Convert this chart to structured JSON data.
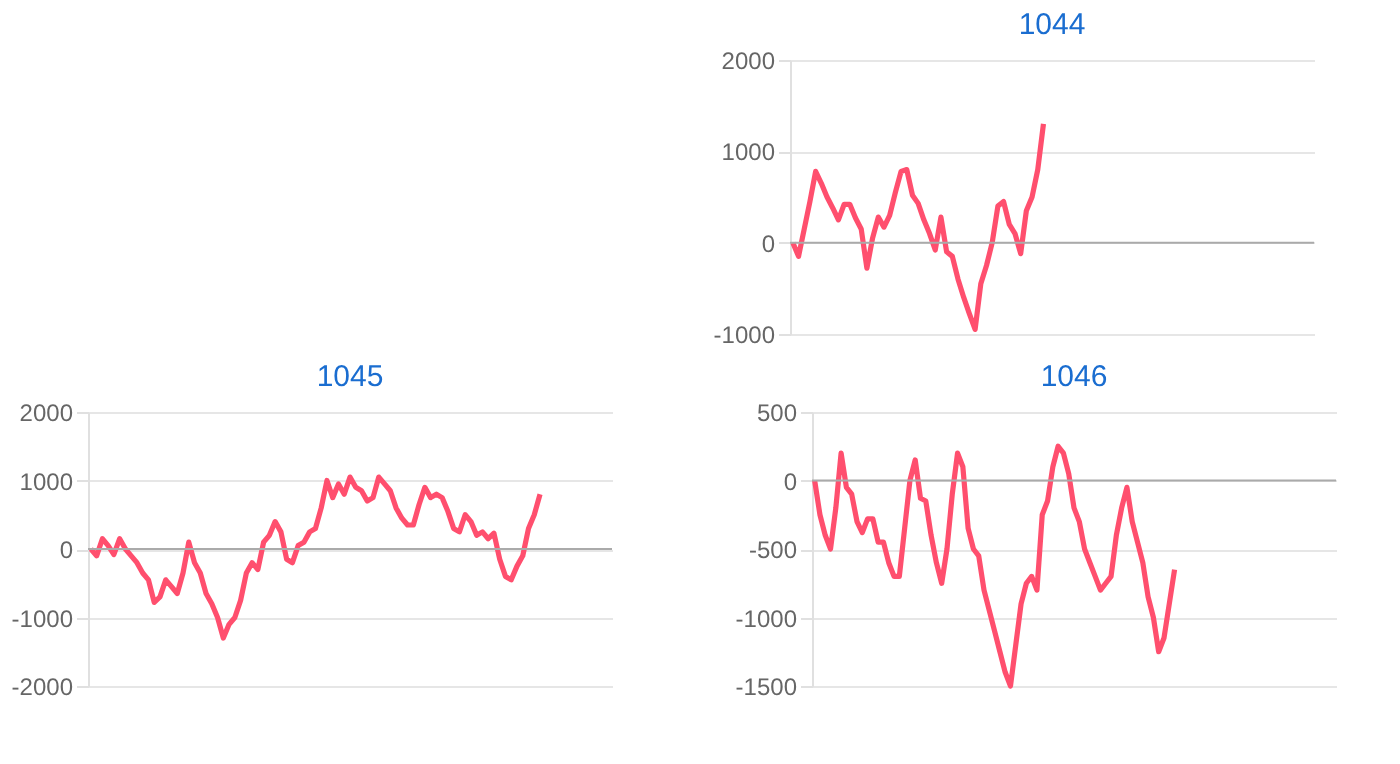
{
  "chart_data": [
    {
      "type": "line",
      "title": "1044",
      "tick_labels": "y",
      "grid": "y",
      "legend": false,
      "marker": "none",
      "line_style": "solid",
      "ylim": [
        -1000,
        2000
      ],
      "yticks": [
        -1000,
        0,
        1000,
        2000
      ],
      "ref_lines": [
        {
          "axis": "y",
          "value": 0,
          "color": "#aaaaaa"
        }
      ],
      "categories": [
        null,
        null,
        null,
        null,
        null,
        null,
        null,
        null,
        null,
        null,
        null,
        null,
        null,
        null,
        null,
        null,
        null,
        null,
        null,
        null,
        null,
        null,
        null,
        null,
        null,
        null,
        null,
        null,
        null,
        null,
        null,
        null,
        null,
        null,
        null,
        null,
        null,
        null,
        null,
        null,
        null,
        null,
        null,
        null,
        null,
        null,
        null,
        null,
        null,
        null,
        null,
        null,
        null,
        null,
        null,
        null,
        null,
        null,
        null,
        null,
        null,
        null,
        null,
        null,
        null,
        null,
        null,
        null,
        null,
        null,
        null,
        null,
        null,
        null,
        null,
        null,
        null,
        null,
        null,
        null,
        null,
        null,
        null,
        null,
        null,
        null,
        null,
        null,
        null,
        null,
        null,
        null
      ],
      "series": [
        {
          "color": "#ff4f6e",
          "values": [
            0,
            -150,
            150,
            450,
            780,
            650,
            500,
            380,
            250,
            420,
            420,
            270,
            150,
            -280,
            50,
            280,
            170,
            300,
            550,
            780,
            800,
            520,
            430,
            250,
            100,
            -80,
            280,
            -100,
            -150,
            -400,
            -600,
            -780,
            -950,
            -450,
            -250,
            0,
            400,
            450,
            200,
            100,
            -120,
            350,
            500,
            800,
            1300,
            null,
            null,
            null,
            null,
            null,
            null,
            null,
            null,
            null,
            null,
            null,
            null,
            null,
            null,
            null,
            null,
            null,
            null,
            null,
            null,
            null,
            null,
            null,
            null,
            null,
            null,
            null,
            null,
            null,
            null,
            null,
            null,
            null,
            null,
            null,
            null,
            null,
            null,
            null,
            null,
            null,
            null,
            null,
            null,
            null,
            null,
            null
          ]
        }
      ]
    },
    {
      "type": "line",
      "title": "1045",
      "tick_labels": "y",
      "grid": "y",
      "legend": false,
      "marker": "none",
      "line_style": "solid",
      "ylim": [
        -2000,
        2000
      ],
      "yticks": [
        -2000,
        -1000,
        0,
        1000,
        2000
      ],
      "ref_lines": [
        {
          "axis": "y",
          "value": 0,
          "color": "#aaaaaa"
        }
      ],
      "categories": [
        null,
        null,
        null,
        null,
        null,
        null,
        null,
        null,
        null,
        null,
        null,
        null,
        null,
        null,
        null,
        null,
        null,
        null,
        null,
        null,
        null,
        null,
        null,
        null,
        null,
        null,
        null,
        null,
        null,
        null,
        null,
        null,
        null,
        null,
        null,
        null,
        null,
        null,
        null,
        null,
        null,
        null,
        null,
        null,
        null,
        null,
        null,
        null,
        null,
        null,
        null,
        null,
        null,
        null,
        null,
        null,
        null,
        null,
        null,
        null,
        null,
        null,
        null,
        null,
        null,
        null,
        null,
        null,
        null,
        null,
        null,
        null,
        null,
        null,
        null,
        null,
        null,
        null,
        null,
        null,
        null,
        null,
        null,
        null,
        null,
        null,
        null,
        null,
        null,
        null,
        null
      ],
      "series": [
        {
          "color": "#ff4f6e",
          "values": [
            0,
            -100,
            150,
            50,
            -80,
            150,
            0,
            -100,
            -200,
            -350,
            -450,
            -780,
            -700,
            -450,
            -550,
            -650,
            -350,
            100,
            -200,
            -350,
            -650,
            -800,
            -1000,
            -1300,
            -1100,
            -1000,
            -750,
            -350,
            -200,
            -300,
            100,
            200,
            400,
            250,
            -150,
            -200,
            50,
            100,
            250,
            300,
            600,
            1000,
            750,
            950,
            800,
            1050,
            900,
            850,
            700,
            750,
            1050,
            950,
            850,
            600,
            450,
            350,
            350,
            650,
            900,
            750,
            800,
            750,
            550,
            300,
            250,
            500,
            400,
            200,
            250,
            150,
            230,
            -150,
            -400,
            -450,
            -250,
            -100,
            300,
            500,
            800,
            null,
            null,
            null,
            null,
            null,
            null,
            null,
            null,
            null,
            null,
            null,
            null
          ]
        }
      ]
    },
    {
      "type": "line",
      "title": "1046",
      "tick_labels": "y",
      "grid": "y",
      "legend": false,
      "marker": "none",
      "line_style": "solid",
      "ylim": [
        -1500,
        500
      ],
      "yticks": [
        -1500,
        -1000,
        -500,
        0,
        500
      ],
      "ref_lines": [
        {
          "axis": "y",
          "value": 0,
          "color": "#aaaaaa"
        }
      ],
      "categories": [
        null,
        null,
        null,
        null,
        null,
        null,
        null,
        null,
        null,
        null,
        null,
        null,
        null,
        null,
        null,
        null,
        null,
        null,
        null,
        null,
        null,
        null,
        null,
        null,
        null,
        null,
        null,
        null,
        null,
        null,
        null,
        null,
        null,
        null,
        null,
        null,
        null,
        null,
        null,
        null,
        null,
        null,
        null,
        null,
        null,
        null,
        null,
        null,
        null,
        null,
        null,
        null,
        null,
        null,
        null,
        null,
        null,
        null,
        null,
        null,
        null,
        null,
        null,
        null,
        null,
        null,
        null,
        null,
        null,
        null,
        null,
        null,
        null,
        null,
        null,
        null,
        null,
        null,
        null,
        null,
        null,
        null,
        null,
        null,
        null,
        null,
        null,
        null,
        null,
        null,
        null,
        null,
        null,
        null,
        null,
        null,
        null,
        null,
        null
      ],
      "series": [
        {
          "color": "#ff4f6e",
          "values": [
            0,
            -250,
            -400,
            -500,
            -200,
            200,
            -50,
            -100,
            -300,
            -380,
            -280,
            -280,
            -450,
            -450,
            -600,
            -700,
            -700,
            -350,
            0,
            150,
            -130,
            -150,
            -400,
            -600,
            -750,
            -500,
            -100,
            200,
            100,
            -350,
            -500,
            -550,
            -800,
            -950,
            -1100,
            -1250,
            -1400,
            -1500,
            -1200,
            -900,
            -750,
            -700,
            -800,
            -250,
            -150,
            100,
            250,
            200,
            50,
            -200,
            -300,
            -500,
            -600,
            -700,
            -800,
            -750,
            -700,
            -400,
            -200,
            -50,
            -300,
            -450,
            -600,
            -850,
            -1000,
            -1250,
            -1150,
            -900,
            -650,
            null,
            null,
            null,
            null,
            null,
            null,
            null,
            null,
            null,
            null,
            null,
            null,
            null,
            null,
            null,
            null,
            null,
            null,
            null,
            null,
            null,
            null,
            null,
            null,
            null,
            null,
            null,
            null,
            null,
            null
          ]
        }
      ]
    }
  ]
}
